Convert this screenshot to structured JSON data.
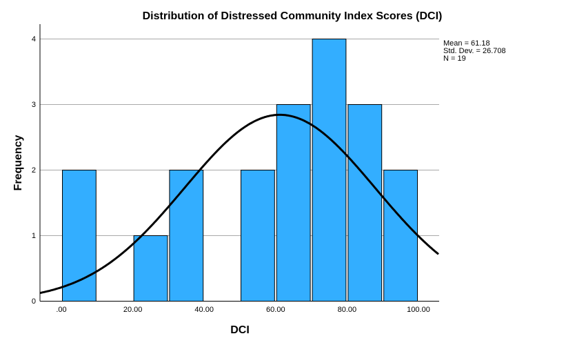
{
  "chart_data": {
    "type": "bar",
    "subtype": "histogram",
    "title": "Distribution of Distressed Community Index Scores (DCI)",
    "xlabel": "DCI",
    "ylabel": "Frequency",
    "xlim": [
      -6,
      105
    ],
    "ylim": [
      0,
      4.2
    ],
    "x_ticks": [
      0,
      20,
      40,
      60,
      80,
      100
    ],
    "x_tick_labels": [
      ".00",
      "20.00",
      "40.00",
      "60.00",
      "80.00",
      "100.00"
    ],
    "y_ticks": [
      0,
      1,
      2,
      3,
      4
    ],
    "y_tick_labels": [
      "0",
      "1",
      "2",
      "3",
      "4"
    ],
    "grid": "horizontal",
    "bar_color": "#33aeff",
    "bins": [
      {
        "start": 0,
        "end": 10,
        "count": 2
      },
      {
        "start": 10,
        "end": 20,
        "count": 0
      },
      {
        "start": 20,
        "end": 30,
        "count": 1
      },
      {
        "start": 30,
        "end": 40,
        "count": 2
      },
      {
        "start": 40,
        "end": 50,
        "count": 0
      },
      {
        "start": 50,
        "end": 60,
        "count": 2
      },
      {
        "start": 60,
        "end": 70,
        "count": 3
      },
      {
        "start": 70,
        "end": 80,
        "count": 4
      },
      {
        "start": 80,
        "end": 90,
        "count": 3
      },
      {
        "start": 90,
        "end": 100,
        "count": 2
      }
    ],
    "normal_curve": {
      "mean": 61.18,
      "std": 26.708,
      "n": 19,
      "bin_width": 10
    },
    "stats": {
      "legend_position": "top-right",
      "lines": [
        "Mean = 61.18",
        "Std. Dev. = 26.708",
        "N = 19"
      ]
    }
  }
}
